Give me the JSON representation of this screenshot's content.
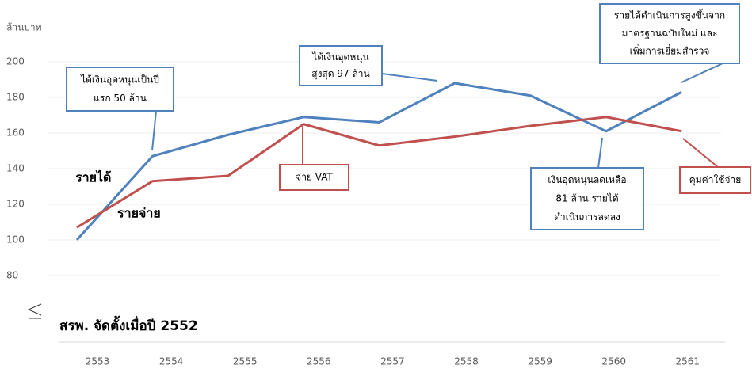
{
  "chart_data": {
    "type": "line",
    "y_label": "ล้านบาท",
    "categories": [
      "2553",
      "2554",
      "2555",
      "2556",
      "2557",
      "2558",
      "2559",
      "2560",
      "2561"
    ],
    "series": [
      {
        "name": "รายได้",
        "color": "#4f81bd",
        "values": [
          100,
          147,
          159,
          169,
          166,
          188,
          181,
          161,
          183
        ]
      },
      {
        "name": "รายจ่าย",
        "color": "#c0504d",
        "values": [
          107,
          133,
          136,
          165,
          153,
          158,
          164,
          169,
          161
        ]
      }
    ],
    "ylim": [
      80,
      200
    ],
    "yticks": [
      80,
      100,
      120,
      140,
      160,
      180,
      200
    ],
    "grid": true,
    "note": "สรพ. จัดตั้งเมื่อปี 2552",
    "annotations": [
      {
        "lines": [
          "ได้เงินอุดหนุนเป็นปี",
          "แรก 50 ล้าน"
        ],
        "color": "#4f81bd"
      },
      {
        "lines": [
          "ได้เงินอุดหนุน",
          "สูงสุด 97 ล้าน"
        ],
        "color": "#4f81bd"
      },
      {
        "lines": [
          "รายได้ดำเนินการสูงขึ้นจาก",
          "มาตรฐานฉบับใหม่ และ",
          "เพิ่มการเยี่ยมสำรวจ"
        ],
        "color": "#4f81bd"
      },
      {
        "lines": [
          "จ่าย VAT"
        ],
        "color": "#c0504d"
      },
      {
        "lines": [
          "เงินอุดหนุนลดเหลือ",
          "81 ล้าน รายได้",
          "ดำเนินการลดลง"
        ],
        "color": "#4f81bd"
      },
      {
        "lines": [
          "คุมค่าใช้จ่าย"
        ],
        "color": "#c0504d"
      }
    ]
  }
}
